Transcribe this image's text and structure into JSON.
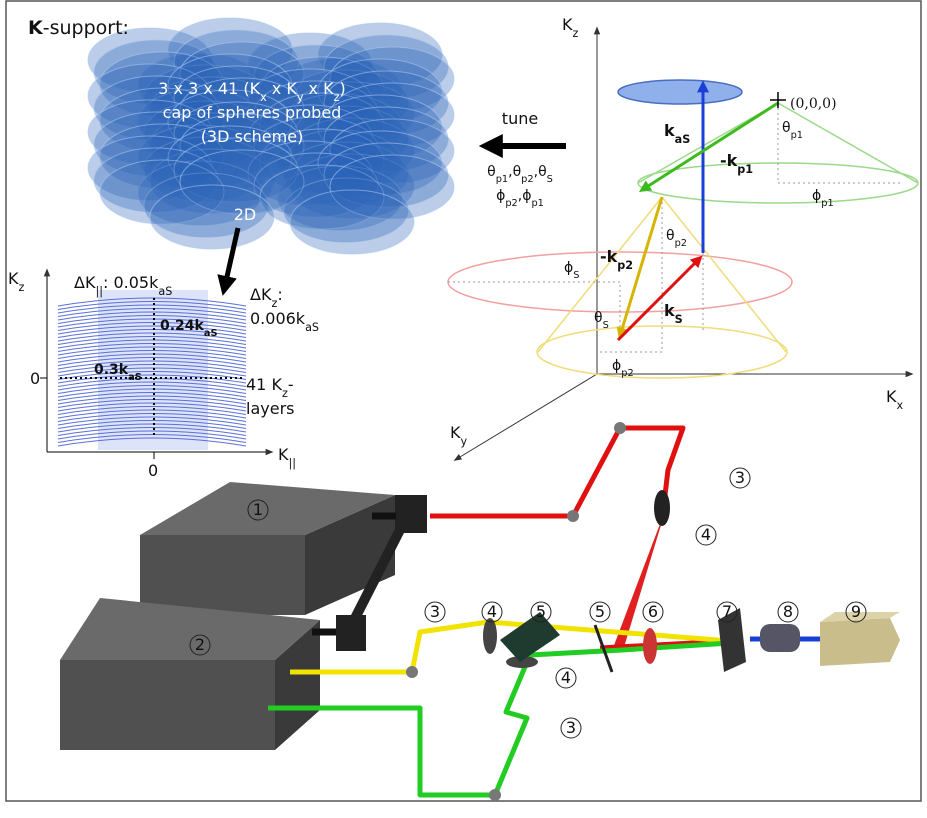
{
  "k_support": {
    "title_bold": "K",
    "title_rest": "-support:",
    "line1": [
      "3 x 3 x 41  (K",
      "x",
      " x K",
      "y",
      " x K",
      "z",
      ")"
    ],
    "line2": "cap of spheres probed",
    "line3": "(3D scheme)",
    "arrow_label": "2D"
  },
  "tune": {
    "label": "tune",
    "angles1": [
      "θ",
      "p1",
      ",θ",
      "p2",
      ",θ",
      "S"
    ],
    "angles2": [
      "ϕ",
      "p2",
      ",ϕ",
      "p1"
    ]
  },
  "diagram_3d": {
    "axis_z": [
      "K",
      "z"
    ],
    "axis_x": [
      "K",
      "x"
    ],
    "axis_y": [
      "K",
      "y"
    ],
    "origin": "(0,0,0)",
    "k_as": [
      "k",
      "aS"
    ],
    "k_p1": [
      "-k",
      "p1"
    ],
    "theta_p1": [
      "θ",
      "p1"
    ],
    "phi_p1": [
      "ϕ",
      "p1"
    ],
    "theta_p2": [
      "θ",
      "p2"
    ],
    "k_p2": [
      "-k",
      "p2"
    ],
    "phi_s": [
      "ϕ",
      "S"
    ],
    "theta_s": [
      "θ",
      "S"
    ],
    "k_s": [
      "k",
      "S"
    ],
    "phi_p2": [
      "ϕ",
      "p2"
    ]
  },
  "inset": {
    "axis_z": [
      "K",
      "z"
    ],
    "dk_par": [
      "ΔK",
      "||",
      ": 0.05k",
      "aS"
    ],
    "height": [
      "0.24k",
      "aS"
    ],
    "dk_z": [
      "ΔK",
      "z",
      ":"
    ],
    "dk_z_value": [
      "0.006k",
      "aS"
    ],
    "width": [
      "0.3k",
      "aS"
    ],
    "y_zero": "0",
    "layers1": [
      "41 K",
      "z",
      "-"
    ],
    "layers2": "layers",
    "x_zero": "0",
    "axis_par": [
      "K",
      "||"
    ]
  },
  "setup": {
    "components": [
      "1",
      "2",
      "3",
      "4",
      "5",
      "5",
      "6",
      "7",
      "8",
      "9",
      "3",
      "4",
      "4",
      "3"
    ]
  }
}
